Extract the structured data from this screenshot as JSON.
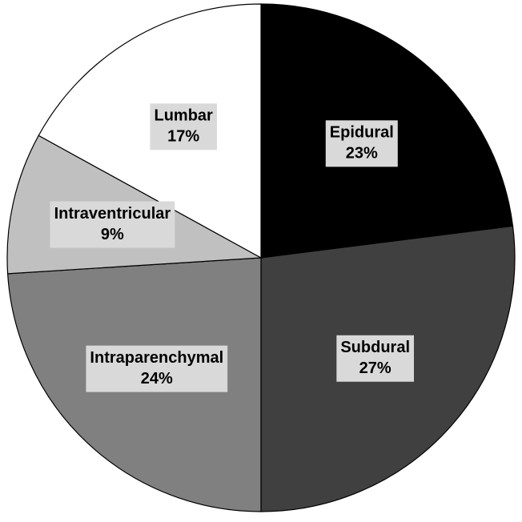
{
  "chart_data": {
    "type": "pie",
    "categories": [
      "Epidural",
      "Subdural",
      "Intraparenchymal",
      "Intraventricular",
      "Lumbar"
    ],
    "values": [
      23,
      27,
      24,
      9,
      17
    ],
    "value_labels": [
      "23%",
      "27%",
      "24%",
      "9%",
      "17%"
    ],
    "colors": [
      "#000000",
      "#404040",
      "#808080",
      "#c0c0c0",
      "#ffffff"
    ]
  }
}
